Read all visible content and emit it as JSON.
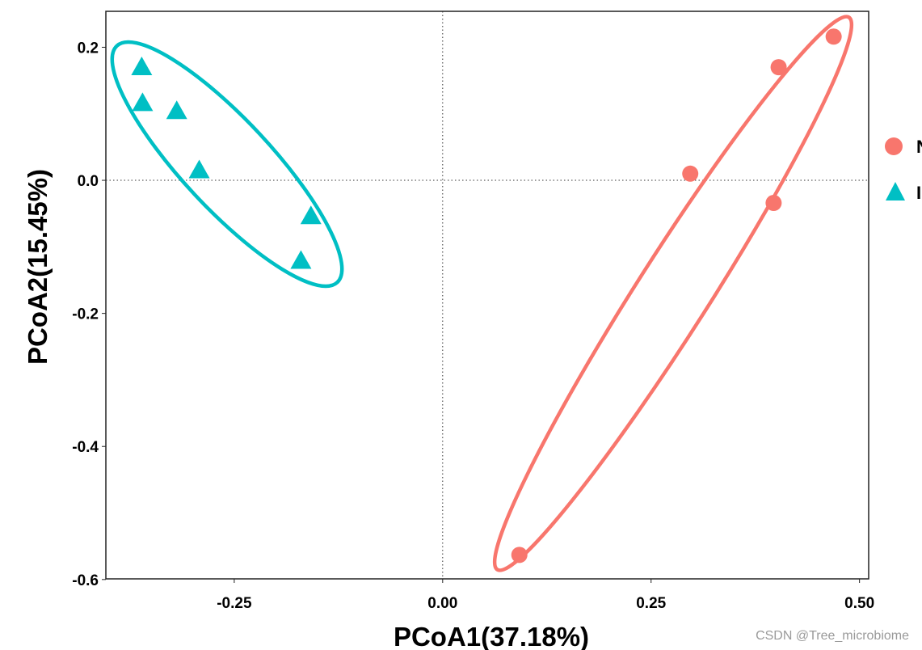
{
  "chart_data": {
    "type": "scatter",
    "title": "",
    "xlabel": "PCoA1(37.18%)",
    "ylabel": "PCoA2(15.45%)",
    "xlim": [
      -0.404,
      0.511
    ],
    "ylim": [
      -0.599,
      0.254
    ],
    "xticks": [
      -0.25,
      0.0,
      0.25,
      0.5
    ],
    "xtick_labels": [
      "-0.25",
      "0.00",
      "0.25",
      "0.50"
    ],
    "yticks": [
      0.2,
      0.0,
      -0.2,
      -0.4,
      -0.6
    ],
    "ytick_labels": [
      "0.2",
      "0.0",
      "-0.2",
      "-0.4",
      "-0.6"
    ],
    "grid": false,
    "reference_lines": {
      "x": 0,
      "y": 0,
      "style": "dotted"
    },
    "legend_position": "right",
    "series": [
      {
        "name": "N",
        "color": "#F8766D",
        "marker": "circle",
        "ellipse": true,
        "points": [
          [
            0.469,
            0.216
          ],
          [
            0.403,
            0.17
          ],
          [
            0.297,
            0.01
          ],
          [
            0.397,
            -0.034
          ],
          [
            0.092,
            -0.563
          ]
        ]
      },
      {
        "name": "I",
        "color": "#00BFC4",
        "marker": "triangle",
        "ellipse": true,
        "points": [
          [
            -0.361,
            0.169
          ],
          [
            -0.36,
            0.115
          ],
          [
            -0.319,
            0.103
          ],
          [
            -0.292,
            0.014
          ],
          [
            -0.158,
            -0.055
          ],
          [
            -0.17,
            -0.122
          ]
        ]
      }
    ]
  },
  "watermark": "CSDN @Tree_microbiome"
}
